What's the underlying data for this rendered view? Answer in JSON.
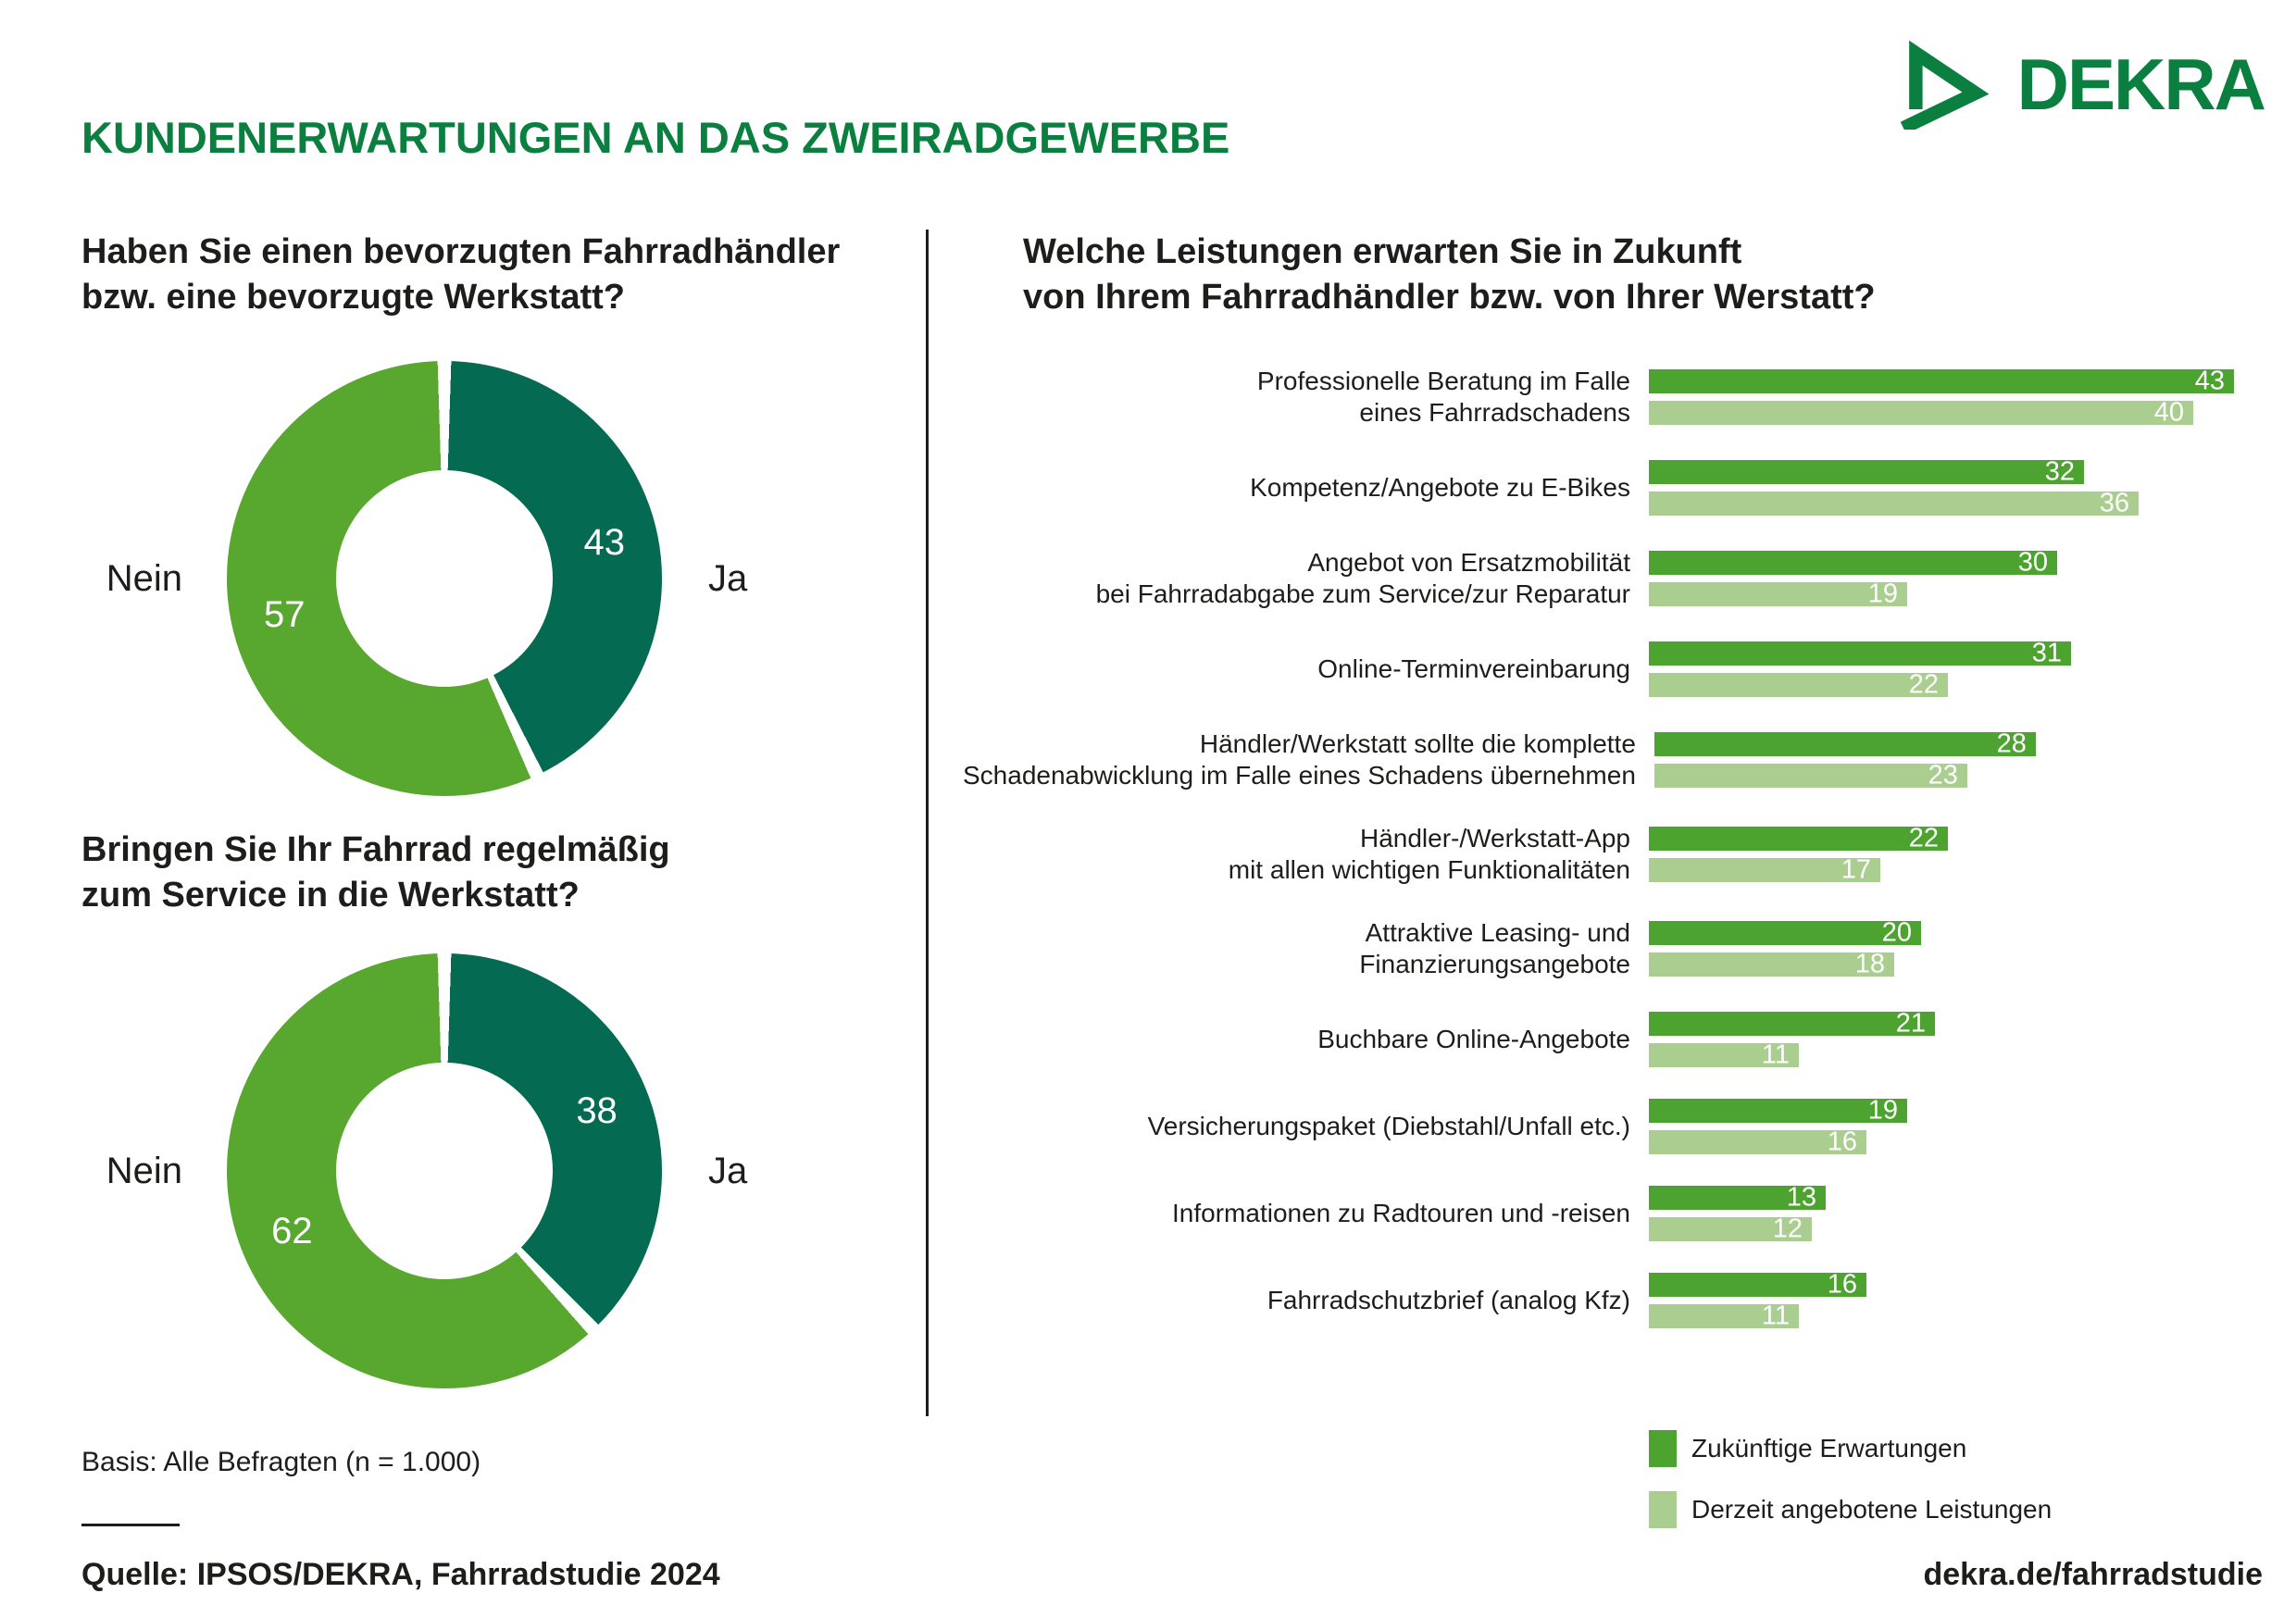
{
  "header": {
    "title": "KUNDENERWARTUNGEN AN DAS ZWEIRADGEWERBE",
    "logo_text": "DEKRA"
  },
  "colors": {
    "dekra_green": "#0b7f3f",
    "donut_ja": "#046a52",
    "donut_nein": "#58a72f",
    "bar_future": "#4da32f",
    "bar_current": "#a9ce90",
    "text": "#1d1d1b"
  },
  "chart_data": [
    {
      "id": "preferred-dealer-donut",
      "type": "pie",
      "question_lines": [
        "Haben Sie einen bevorzugten Fahrradhändler",
        "bzw. eine bevorzugte Werkstatt?"
      ],
      "slices": [
        {
          "label": "Ja",
          "value": 43
        },
        {
          "label": "Nein",
          "value": 57
        }
      ],
      "start_angle_deg": 0,
      "direction": "clockwise",
      "donut_hole": true
    },
    {
      "id": "regular-service-donut",
      "type": "pie",
      "question_lines": [
        "Bringen Sie Ihr Fahrrad regelmäßig",
        "zum Service in die Werkstatt?"
      ],
      "slices": [
        {
          "label": "Ja",
          "value": 38
        },
        {
          "label": "Nein",
          "value": 62
        }
      ],
      "start_angle_deg": 0,
      "direction": "clockwise",
      "donut_hole": true
    },
    {
      "id": "expected-services-bars",
      "type": "bar",
      "orientation": "horizontal",
      "question_lines": [
        "Welche Leistungen erwarten Sie in Zukunft",
        "von Ihrem Fahrradhändler bzw. von Ihrer Werstatt?"
      ],
      "series": [
        {
          "name": "Zukünftige Erwartungen",
          "color_key": "bar_future"
        },
        {
          "name": "Derzeit angebotene Leistungen",
          "color_key": "bar_current"
        }
      ],
      "categories": [
        [
          "Professionelle Beratung im Falle",
          "eines Fahrradschadens"
        ],
        [
          "Kompetenz/Angebote zu E-Bikes"
        ],
        [
          "Angebot von Ersatzmobilität",
          "bei Fahrradabgabe zum Service/zur Reparatur"
        ],
        [
          "Online-Terminvereinbarung"
        ],
        [
          "Händler/Werkstatt sollte die komplette",
          "Schadenabwicklung im Falle eines Schadens übernehmen"
        ],
        [
          "Händler-/Werkstatt-App",
          "mit allen wichtigen Funktionalitäten"
        ],
        [
          "Attraktive Leasing- und",
          "Finanzierungsangebote"
        ],
        [
          "Buchbare Online-Angebote"
        ],
        [
          "Versicherungspaket (Diebstahl/Unfall etc.)"
        ],
        [
          "Informationen zu Radtouren und -reisen"
        ],
        [
          "Fahrradschutzbrief (analog Kfz)"
        ]
      ],
      "values": [
        [
          43,
          40
        ],
        [
          32,
          36
        ],
        [
          30,
          19
        ],
        [
          31,
          22
        ],
        [
          28,
          23
        ],
        [
          22,
          17
        ],
        [
          20,
          18
        ],
        [
          21,
          11
        ],
        [
          19,
          16
        ],
        [
          13,
          12
        ],
        [
          16,
          11
        ]
      ],
      "xlim": [
        0,
        45
      ],
      "grid": false,
      "legend_position": "bottom",
      "data_labels": "inside-end"
    }
  ],
  "footer": {
    "basis": "Basis: Alle Befragten (n = 1.000)",
    "source": "Quelle: IPSOS/DEKRA, Fahrradstudie 2024",
    "link": "dekra.de/fahrradstudie"
  }
}
